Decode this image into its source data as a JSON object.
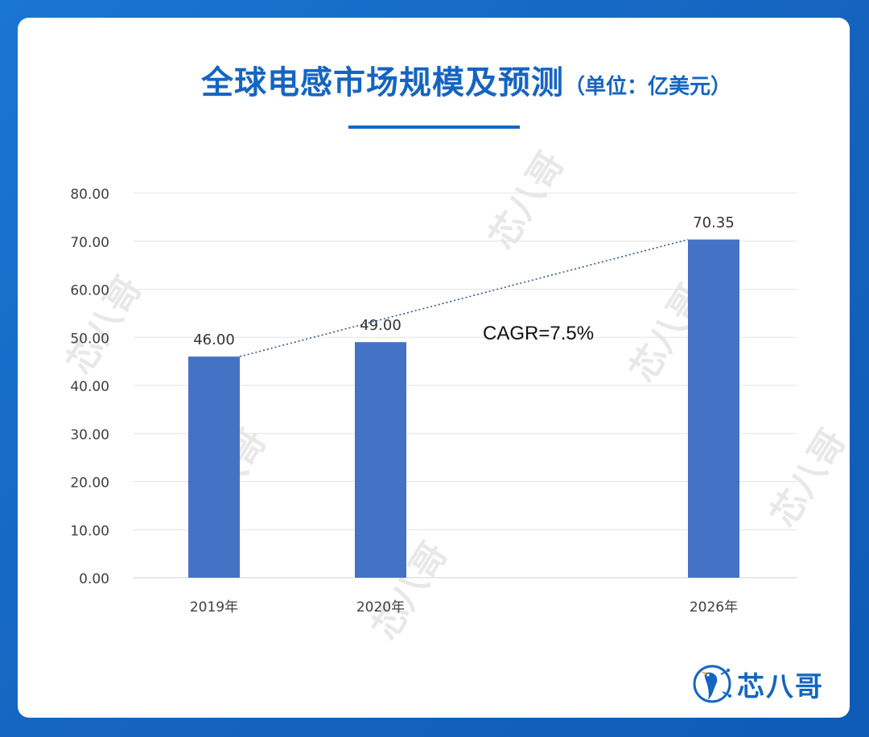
{
  "title": "全球电感市场规模及预测",
  "unit": "（单位：亿美元）",
  "brand": {
    "name": "芯八哥",
    "logo_icon": "bird-logo-icon"
  },
  "watermark": "芯八哥",
  "colors": {
    "accent": "#1565c0",
    "bar": "#4472c4",
    "trend": "#2f5597"
  },
  "chart_data": {
    "type": "bar",
    "categories": [
      "2019年",
      "2020年",
      "2026年"
    ],
    "values": [
      46.0,
      49.0,
      70.35
    ],
    "value_labels": [
      "46.00",
      "49.00",
      "70.35"
    ],
    "ylim": [
      0,
      80
    ],
    "yticks": [
      "0.00",
      "10.00",
      "20.00",
      "30.00",
      "40.00",
      "50.00",
      "60.00",
      "70.00",
      "80.00"
    ],
    "grid": true,
    "trendline": {
      "from": "2019年",
      "to": "2026年",
      "style": "dotted"
    },
    "annotation": "CAGR=7.5%"
  }
}
